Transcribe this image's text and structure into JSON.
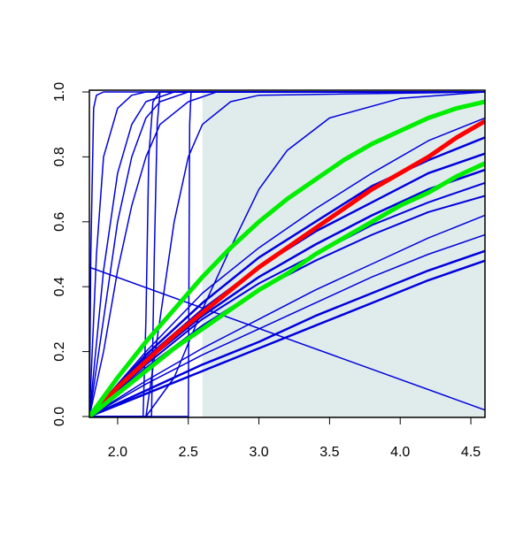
{
  "chart_data": {
    "type": "line",
    "xlim": [
      1.8,
      4.6
    ],
    "ylim": [
      0,
      1
    ],
    "xticks": [
      {
        "value": 2,
        "label": "2.0"
      },
      {
        "value": 2.5,
        "label": "2.5"
      },
      {
        "value": 3,
        "label": "3.0"
      },
      {
        "value": 3.5,
        "label": "3.5"
      },
      {
        "value": 4,
        "label": "4.0"
      },
      {
        "value": 4.5,
        "label": "4.5"
      }
    ],
    "yticks": [
      {
        "value": 0,
        "label": "0.0"
      },
      {
        "value": 0.2,
        "label": "0.2"
      },
      {
        "value": 0.4,
        "label": "0.4"
      },
      {
        "value": 0.6,
        "label": "0.6"
      },
      {
        "value": 0.8,
        "label": "0.8"
      },
      {
        "value": 1,
        "label": "1.0"
      }
    ],
    "highlight": {
      "x": [
        2.6,
        4.6
      ],
      "color": "#e0ecec"
    },
    "series": [
      {
        "color": "#0000dd",
        "line_width": 1.5,
        "x": [
          1.8,
          1.81,
          1.83,
          1.85,
          1.9,
          4.6
        ],
        "values": [
          0,
          0.5,
          0.95,
          0.99,
          1,
          1
        ]
      },
      {
        "color": "#0000dd",
        "line_width": 1.5,
        "x": [
          1.8,
          1.85,
          1.9,
          2.0,
          2.1,
          2.2,
          4.6
        ],
        "values": [
          0,
          0.5,
          0.8,
          0.95,
          0.99,
          1,
          1
        ]
      },
      {
        "color": "#0000dd",
        "line_width": 1.5,
        "x": [
          1.8,
          1.9,
          2.0,
          2.1,
          2.2,
          2.4,
          4.6
        ],
        "values": [
          0,
          0.45,
          0.75,
          0.9,
          0.97,
          1,
          1
        ]
      },
      {
        "color": "#0000dd",
        "line_width": 1.5,
        "x": [
          1.8,
          1.9,
          2.0,
          2.1,
          2.2,
          2.3,
          2.5,
          4.6
        ],
        "values": [
          0,
          0.3,
          0.6,
          0.8,
          0.92,
          0.97,
          1,
          1
        ]
      },
      {
        "color": "#0000dd",
        "line_width": 1.5,
        "x": [
          1.8,
          1.9,
          2.0,
          2.1,
          2.2,
          2.3,
          2.5,
          2.7,
          4.6
        ],
        "values": [
          0,
          0.2,
          0.45,
          0.65,
          0.8,
          0.9,
          0.97,
          1,
          1
        ]
      },
      {
        "color": "#0000dd",
        "line_width": 1.5,
        "x": [
          1.8,
          2.18,
          2.2,
          2.22,
          2.25,
          2.3,
          4.6
        ],
        "values": [
          0,
          0,
          0.3,
          0.8,
          0.97,
          1,
          1
        ]
      },
      {
        "color": "#0000dd",
        "line_width": 1.5,
        "x": [
          1.8,
          2.24,
          2.26,
          2.28,
          2.3,
          4.6
        ],
        "values": [
          0,
          0,
          0.5,
          0.9,
          1,
          1
        ]
      },
      {
        "color": "#0000dd",
        "line_width": 1.5,
        "x": [
          1.8,
          2.5,
          2.51,
          2.52,
          4.6
        ],
        "values": [
          0,
          0,
          0.9,
          1,
          1
        ]
      },
      {
        "color": "#0000dd",
        "line_width": 1.5,
        "x": [
          1.8,
          2.2,
          2.3,
          2.4,
          2.5,
          2.6,
          2.8,
          3.0,
          4.6
        ],
        "values": [
          0,
          0,
          0.3,
          0.6,
          0.8,
          0.9,
          0.97,
          0.99,
          1
        ]
      },
      {
        "color": "#0000dd",
        "line_width": 1.5,
        "x": [
          1.8,
          2.2,
          2.4,
          2.6,
          2.8,
          3.0,
          3.2,
          3.5,
          4.0,
          4.6
        ],
        "values": [
          0,
          0,
          0.12,
          0.33,
          0.52,
          0.7,
          0.82,
          0.92,
          0.98,
          1
        ]
      },
      {
        "color": "#0000dd",
        "line_width": 1.5,
        "x": [
          1.8,
          2.2,
          2.6,
          3.0,
          3.4,
          3.8,
          4.2,
          4.6
        ],
        "values": [
          0,
          0.2,
          0.38,
          0.52,
          0.64,
          0.75,
          0.85,
          0.92
        ]
      },
      {
        "color": "#0000dd",
        "line_width": 2.5,
        "x": [
          1.8,
          2.2,
          2.6,
          3.0,
          3.4,
          3.8,
          4.2,
          4.6
        ],
        "values": [
          0,
          0.19,
          0.35,
          0.49,
          0.6,
          0.71,
          0.79,
          0.86
        ]
      },
      {
        "color": "#0000dd",
        "line_width": 2.5,
        "x": [
          1.8,
          2.2,
          2.6,
          3.0,
          3.4,
          3.8,
          4.2,
          4.6
        ],
        "values": [
          0,
          0.18,
          0.33,
          0.46,
          0.57,
          0.66,
          0.75,
          0.81
        ]
      },
      {
        "color": "#0000dd",
        "line_width": 2.5,
        "x": [
          1.8,
          2.2,
          2.6,
          3.0,
          3.4,
          3.8,
          4.2,
          4.6
        ],
        "values": [
          0,
          0.17,
          0.31,
          0.43,
          0.53,
          0.62,
          0.7,
          0.76
        ]
      },
      {
        "color": "#0000dd",
        "line_width": 2,
        "x": [
          1.8,
          2.2,
          2.6,
          3.0,
          3.4,
          3.8,
          4.2,
          4.6
        ],
        "values": [
          0,
          0.16,
          0.3,
          0.41,
          0.5,
          0.59,
          0.66,
          0.72
        ]
      },
      {
        "color": "#0000dd",
        "line_width": 2,
        "x": [
          1.8,
          2.2,
          2.6,
          3.0,
          3.4,
          3.8,
          4.2,
          4.6
        ],
        "values": [
          0,
          0.15,
          0.28,
          0.39,
          0.48,
          0.56,
          0.63,
          0.68
        ]
      },
      {
        "color": "#0000dd",
        "line_width": 1.5,
        "x": [
          1.8,
          2.2,
          2.6,
          3.0,
          3.4,
          3.8,
          4.2,
          4.6
        ],
        "values": [
          0,
          0.11,
          0.21,
          0.3,
          0.39,
          0.47,
          0.55,
          0.62
        ]
      },
      {
        "color": "#0000dd",
        "line_width": 1.5,
        "x": [
          1.8,
          2.2,
          2.6,
          3.0,
          3.4,
          3.8,
          4.2,
          4.6
        ],
        "values": [
          0,
          0.1,
          0.19,
          0.27,
          0.35,
          0.43,
          0.5,
          0.56
        ]
      },
      {
        "color": "#0000dd",
        "line_width": 2.5,
        "x": [
          1.8,
          2.2,
          2.6,
          3.0,
          3.4,
          3.8,
          4.2,
          4.6
        ],
        "values": [
          0,
          0.08,
          0.16,
          0.23,
          0.31,
          0.38,
          0.45,
          0.51
        ]
      },
      {
        "color": "#0000dd",
        "line_width": 2.5,
        "x": [
          1.8,
          2.2,
          2.6,
          3.0,
          3.4,
          3.8,
          4.2,
          4.6
        ],
        "values": [
          0,
          0.07,
          0.14,
          0.21,
          0.28,
          0.35,
          0.42,
          0.48
        ]
      },
      {
        "color": "#0000dd",
        "line_width": 1.5,
        "x": [
          1.8,
          4.6
        ],
        "values": [
          0.46,
          0.02
        ]
      },
      {
        "color": "#ff0000",
        "line_width": 5,
        "x": [
          1.8,
          2.0,
          2.2,
          2.4,
          2.6,
          2.8,
          3.0,
          3.2,
          3.4,
          3.6,
          3.8,
          4.0,
          4.2,
          4.4,
          4.6
        ],
        "values": [
          0,
          0.09,
          0.17,
          0.25,
          0.32,
          0.39,
          0.46,
          0.52,
          0.58,
          0.64,
          0.7,
          0.75,
          0.8,
          0.86,
          0.91
        ]
      },
      {
        "color": "#00ee00",
        "line_width": 5,
        "x": [
          1.8,
          2.0,
          2.2,
          2.4,
          2.6,
          2.8,
          3.0,
          3.2,
          3.4,
          3.6,
          3.8,
          4.0,
          4.2,
          4.4,
          4.6
        ],
        "values": [
          0,
          0.12,
          0.23,
          0.33,
          0.43,
          0.52,
          0.6,
          0.67,
          0.73,
          0.79,
          0.84,
          0.88,
          0.92,
          0.95,
          0.97
        ]
      },
      {
        "color": "#00ee00",
        "line_width": 5,
        "x": [
          1.8,
          2.0,
          2.2,
          2.4,
          2.6,
          2.8,
          3.0,
          3.2,
          3.4,
          3.6,
          3.8,
          4.0,
          4.2,
          4.4,
          4.6
        ],
        "values": [
          0,
          0.07,
          0.14,
          0.21,
          0.27,
          0.33,
          0.39,
          0.44,
          0.5,
          0.55,
          0.6,
          0.65,
          0.69,
          0.74,
          0.78
        ]
      }
    ]
  }
}
